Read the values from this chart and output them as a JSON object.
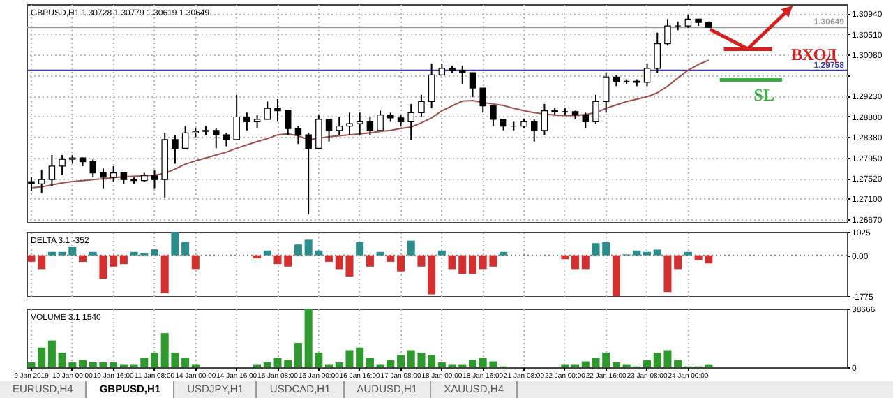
{
  "chart_data": [
    {
      "type": "candlestick",
      "title": "GBPUSD,H1 1.30728 1.30779 1.30619 1.30649",
      "categories": [
        null,
        null,
        null,
        null,
        null,
        null,
        null,
        null,
        null,
        null,
        null,
        null,
        null,
        null,
        null,
        null,
        null,
        null,
        null,
        null,
        null,
        null,
        null,
        null,
        null,
        null,
        null,
        null,
        null,
        null,
        null,
        null,
        null,
        null,
        null,
        null,
        null,
        null,
        null,
        null,
        null,
        null,
        null,
        null,
        null,
        null,
        null,
        null,
        null,
        null,
        null,
        null,
        null,
        null,
        null,
        null,
        null,
        null,
        null,
        null,
        null,
        null,
        null,
        null,
        null,
        null,
        null,
        null,
        null,
        null,
        null,
        null,
        null,
        null,
        null,
        null,
        null,
        null,
        null,
        null
      ],
      "ohlc": [
        [
          1.2745,
          1.2754,
          1.2726,
          1.274
        ],
        [
          1.274,
          1.2769,
          1.2721,
          1.2749
        ],
        [
          1.2749,
          1.28,
          1.2735,
          1.2777
        ],
        [
          1.2777,
          1.28,
          1.2758,
          1.2791
        ],
        [
          1.2791,
          1.28,
          1.2782,
          1.2794
        ],
        [
          1.2794,
          1.2795,
          1.2777,
          1.2786
        ],
        [
          1.2786,
          1.2791,
          1.2754,
          1.2763
        ],
        [
          1.2763,
          1.2772,
          1.2731,
          1.2754
        ],
        [
          1.2754,
          1.2777,
          1.2745,
          1.2763
        ],
        [
          1.2763,
          1.2763,
          1.274,
          1.2749
        ],
        [
          1.2749,
          1.2754,
          1.274,
          1.2747
        ],
        [
          1.2747,
          1.2763,
          1.2745,
          1.2757
        ],
        [
          1.2757,
          1.2768,
          1.2731,
          1.2749
        ],
        [
          1.2749,
          1.2846,
          1.2712,
          1.2832
        ],
        [
          1.2832,
          1.2842,
          1.2782,
          1.2814
        ],
        [
          1.2814,
          1.286,
          1.2814,
          1.2846
        ],
        [
          1.2846,
          1.2855,
          1.2837,
          1.2849
        ],
        [
          1.2849,
          1.286,
          1.2842,
          1.2851
        ],
        [
          1.2851,
          1.2855,
          1.2814,
          1.2842
        ],
        [
          1.2842,
          1.2846,
          1.2818,
          1.2832
        ],
        [
          1.2832,
          1.2925,
          1.2832,
          1.2879
        ],
        [
          1.2879,
          1.2888,
          1.2851,
          1.2869
        ],
        [
          1.2869,
          1.2883,
          1.2855,
          1.2874
        ],
        [
          1.2874,
          1.2911,
          1.2874,
          1.2897
        ],
        [
          1.2897,
          1.2916,
          1.2869,
          1.2892
        ],
        [
          1.2892,
          1.2892,
          1.2842,
          1.2855
        ],
        [
          1.2855,
          1.286,
          1.2823,
          1.2842
        ],
        [
          1.2842,
          1.2846,
          1.2677,
          1.2814
        ],
        [
          1.2814,
          1.2883,
          1.2814,
          1.2874
        ],
        [
          1.2874,
          1.2874,
          1.2828,
          1.2851
        ],
        [
          1.2851,
          1.2879,
          1.2842,
          1.286
        ],
        [
          1.286,
          1.2888,
          1.2842,
          1.2865
        ],
        [
          1.2865,
          1.2888,
          1.2842,
          1.2869
        ],
        [
          1.2869,
          1.2879,
          1.2842,
          1.2851
        ],
        [
          1.2851,
          1.2892,
          1.2851,
          1.2883
        ],
        [
          1.2883,
          1.2888,
          1.2869,
          1.2877
        ],
        [
          1.2877,
          1.2883,
          1.286,
          1.2869
        ],
        [
          1.2869,
          1.2906,
          1.2832,
          1.2888
        ],
        [
          1.2888,
          1.2925,
          1.2879,
          1.2911
        ],
        [
          1.2911,
          1.299,
          1.2897,
          1.2966
        ],
        [
          1.2966,
          1.299,
          1.2966,
          1.298
        ],
        [
          1.298,
          1.2985,
          1.2971,
          1.2976
        ],
        [
          1.2976,
          1.2985,
          1.2948,
          1.2971
        ],
        [
          1.2971,
          1.2971,
          1.292,
          1.2939
        ],
        [
          1.2939,
          1.2939,
          1.2888,
          1.2902
        ],
        [
          1.2902,
          1.2902,
          1.286,
          1.2874
        ],
        [
          1.2874,
          1.2874,
          1.2851,
          1.286
        ],
        [
          1.286,
          1.2869,
          1.2851,
          1.286
        ],
        [
          1.286,
          1.2874,
          1.2855,
          1.2869
        ],
        [
          1.2869,
          1.2874,
          1.2828,
          1.2851
        ],
        [
          1.2851,
          1.2906,
          1.2842,
          1.2892
        ],
        [
          1.2892,
          1.2897,
          1.2883,
          1.289
        ],
        [
          1.289,
          1.2897,
          1.2883,
          1.289
        ],
        [
          1.289,
          1.2892,
          1.2874,
          1.2883
        ],
        [
          1.2883,
          1.2888,
          1.2855,
          1.2869
        ],
        [
          1.2869,
          1.2925,
          1.2865,
          1.2911
        ],
        [
          1.2911,
          1.2971,
          1.2888,
          1.2962
        ],
        [
          1.2962,
          1.2966,
          1.2943,
          1.2953
        ],
        [
          1.2953,
          1.2957,
          1.2948,
          1.2953
        ],
        [
          1.2953,
          1.2957,
          1.2943,
          1.2951
        ],
        [
          1.2951,
          1.299,
          1.2943,
          1.298
        ],
        [
          1.298,
          1.3054,
          1.2971,
          1.3031
        ],
        [
          1.3031,
          1.3082,
          1.3027,
          1.3068
        ],
        [
          1.3068,
          1.3077,
          1.3059,
          1.3068
        ],
        [
          1.3068,
          1.3091,
          1.3064,
          1.3082
        ],
        [
          1.3082,
          1.3082,
          1.3068,
          1.3075
        ],
        [
          1.3075,
          1.3077,
          1.3064,
          1.3065
        ],
        null,
        null,
        null,
        null,
        null,
        null,
        null,
        null,
        null,
        null,
        null,
        null,
        null
      ],
      "series": [
        {
          "type": "line",
          "color": "#a0504a",
          "values": [
            1.2732,
            1.2734,
            1.2738,
            1.2742,
            1.2745,
            1.2747,
            1.2749,
            1.2751,
            1.2753,
            1.2755,
            1.2756,
            1.2757,
            1.2758,
            1.2762,
            1.2771,
            1.2781,
            1.2788,
            1.2794,
            1.28,
            1.2806,
            1.2814,
            1.2821,
            1.2828,
            1.2834,
            1.2842,
            1.2844,
            1.284,
            1.2832,
            1.2835,
            1.2838,
            1.284,
            1.2842,
            1.2844,
            1.2846,
            1.2849,
            1.2851,
            1.2855,
            1.2858,
            1.2867,
            1.2877,
            1.2892,
            1.2902,
            1.2912,
            1.2913,
            1.2909,
            1.2906,
            1.2903,
            1.2897,
            1.2892,
            1.2888,
            1.2885,
            1.2883,
            1.2882,
            1.2882,
            1.2884,
            1.2888,
            1.2897,
            1.2904,
            1.2911,
            1.2916,
            1.2921,
            1.2929,
            1.2943,
            1.296,
            1.2976,
            1.2988,
            1.2997,
            null,
            null,
            null,
            null,
            null,
            null,
            null,
            null,
            null,
            null,
            null,
            null,
            null
          ]
        }
      ],
      "ylim": [
        1.2661,
        1.3113
      ],
      "yticks": [
        {
          "value": 1.3094,
          "label": "1.30940"
        },
        {
          "value": 1.3051,
          "label": "1.30510"
        },
        {
          "value": 1.3008,
          "label": "1.30080"
        },
        {
          "value": 1.2966,
          "label": null
        },
        {
          "value": 1.2923,
          "label": "1.29230"
        },
        {
          "value": 1.288,
          "label": "1.28800"
        },
        {
          "value": 1.2838,
          "label": "1.28380"
        },
        {
          "value": 1.2795,
          "label": "1.27950"
        },
        {
          "value": 1.2752,
          "label": "1.27520"
        },
        {
          "value": 1.271,
          "label": "1.27100"
        },
        {
          "value": 1.2667,
          "label": "1.26670"
        }
      ],
      "ref_lines": [
        {
          "axis": "y",
          "value": 1.29758,
          "label": "1.29758",
          "color": "#3a3a9c"
        },
        {
          "axis": "y",
          "value": 1.30649,
          "label": "1.30649",
          "color": "#9a9a9a"
        }
      ],
      "annotations": [
        "ВХОД",
        "SL"
      ],
      "grid": true,
      "tick_labels": "y"
    },
    {
      "type": "bar",
      "title": "DELTA 3.1 -352",
      "categories": [
        null,
        null,
        null,
        null,
        null,
        null,
        null,
        null,
        null,
        null,
        null,
        null,
        null,
        null,
        null,
        null,
        null,
        null,
        null,
        null,
        null,
        null,
        null,
        null,
        null,
        null,
        null,
        null,
        null,
        null,
        null,
        null,
        null,
        null,
        null,
        null,
        null,
        null,
        null,
        null,
        null,
        null,
        null,
        null,
        null,
        null,
        null,
        null,
        null,
        null,
        null,
        null,
        null,
        null,
        null,
        null,
        null,
        null,
        null,
        null,
        null,
        null,
        null,
        null,
        null,
        null,
        null,
        null,
        null,
        null,
        null,
        null,
        null,
        null,
        null,
        null,
        null,
        null,
        null,
        null
      ],
      "series": [
        {
          "color": "#2b8c8c",
          "values": [
            null,
            null,
            150,
            150,
            360,
            null,
            150,
            null,
            null,
            null,
            150,
            100,
            260,
            null,
            1025,
            575,
            null,
            null,
            null,
            null,
            null,
            null,
            null,
            210,
            null,
            null,
            470,
            680,
            210,
            null,
            null,
            null,
            575,
            null,
            150,
            null,
            null,
            640,
            null,
            null,
            210,
            null,
            null,
            null,
            null,
            null,
            150,
            null,
            null,
            null,
            null,
            null,
            null,
            null,
            null,
            530,
            575,
            null,
            40,
            210,
            150,
            250,
            null,
            null,
            150,
            null,
            null,
            null,
            null,
            null,
            null,
            null,
            null,
            null,
            null,
            null,
            null,
            null,
            null,
            null
          ]
        },
        {
          "color": "#d32f2f",
          "values": [
            -280,
            -600,
            null,
            null,
            null,
            -280,
            null,
            -1020,
            -490,
            -380,
            null,
            null,
            null,
            -1650,
            null,
            null,
            -600,
            null,
            null,
            null,
            null,
            null,
            -130,
            null,
            -380,
            -490,
            null,
            null,
            null,
            -280,
            -600,
            -920,
            null,
            -490,
            null,
            -280,
            -700,
            null,
            -490,
            -1700,
            null,
            -600,
            -800,
            -800,
            -600,
            -490,
            null,
            null,
            null,
            null,
            null,
            null,
            -170,
            -600,
            -600,
            null,
            null,
            -1775,
            null,
            null,
            null,
            null,
            -1600,
            -600,
            null,
            -210,
            -352,
            null,
            null,
            null,
            null,
            null,
            null,
            null,
            null,
            null,
            null,
            null,
            null,
            null
          ]
        }
      ],
      "ylim": [
        -1775,
        1025
      ],
      "yticks": [
        1025,
        {
          "value": 0,
          "label": "0.00"
        },
        -1775
      ],
      "ref_lines": [
        {
          "axis": "y",
          "value": 0,
          "color": "#808080",
          "line_style": "dotted"
        }
      ],
      "grid": "x",
      "tick_labels": "y"
    },
    {
      "type": "bar",
      "title": "VOLUME 3.1 1540",
      "categories": [
        "9 Jan 2019",
        null,
        null,
        null,
        "10 Jan 00:00",
        null,
        null,
        null,
        "10 Jan 16:00",
        null,
        null,
        null,
        "11 Jan 08:00",
        null,
        null,
        null,
        "14 Jan 00:00",
        null,
        null,
        null,
        "14 Jan 16:00",
        null,
        null,
        null,
        "15 Jan 08:00",
        null,
        null,
        null,
        "16 Jan 00:00",
        null,
        null,
        null,
        "16 Jan 16:00",
        null,
        null,
        null,
        "17 Jan 08:00",
        null,
        null,
        null,
        "18 Jan 00:00",
        null,
        null,
        null,
        "18 Jan 16:00",
        null,
        null,
        null,
        "21 Jan 08:00",
        null,
        null,
        null,
        "22 Jan 00:00",
        null,
        null,
        null,
        "22 Jan 16:00",
        null,
        null,
        null,
        "23 Jan 08:00",
        null,
        null,
        null,
        "24 Jan 00:00",
        null,
        null,
        null,
        null,
        null,
        null,
        null,
        null,
        null,
        null,
        null,
        null,
        null,
        null,
        null
      ],
      "series": [
        {
          "color": "#2e9a2e",
          "values": [
            3200,
            13000,
            17700,
            9700,
            3200,
            4800,
            3200,
            3200,
            3200,
            1600,
            1600,
            6400,
            9700,
            22500,
            9700,
            6400,
            1600,
            null,
            null,
            null,
            null,
            null,
            1600,
            3200,
            6400,
            4800,
            16100,
            38666,
            9700,
            1600,
            3200,
            11300,
            13000,
            6400,
            1600,
            4800,
            8000,
            11300,
            9700,
            8000,
            3200,
            1600,
            1600,
            4800,
            6400,
            3900,
            600,
            null,
            null,
            null,
            null,
            null,
            1600,
            1600,
            3900,
            6400,
            9700,
            3200,
            1600,
            600,
            4800,
            9700,
            11300,
            4800,
            600,
            600,
            1540,
            null,
            null,
            null,
            null,
            null,
            null,
            null,
            null,
            null,
            null,
            null,
            null,
            null
          ]
        }
      ],
      "ylim": [
        0,
        38666
      ],
      "yticks": [
        38666,
        0
      ],
      "annotations": [
        "EURUSD,H4",
        "GBPUSD,H1",
        "USDJPY,H1",
        "USDCAD,H1",
        "AUDUSD,H1",
        "XAUUSD,H4"
      ],
      "grid": "x"
    }
  ]
}
